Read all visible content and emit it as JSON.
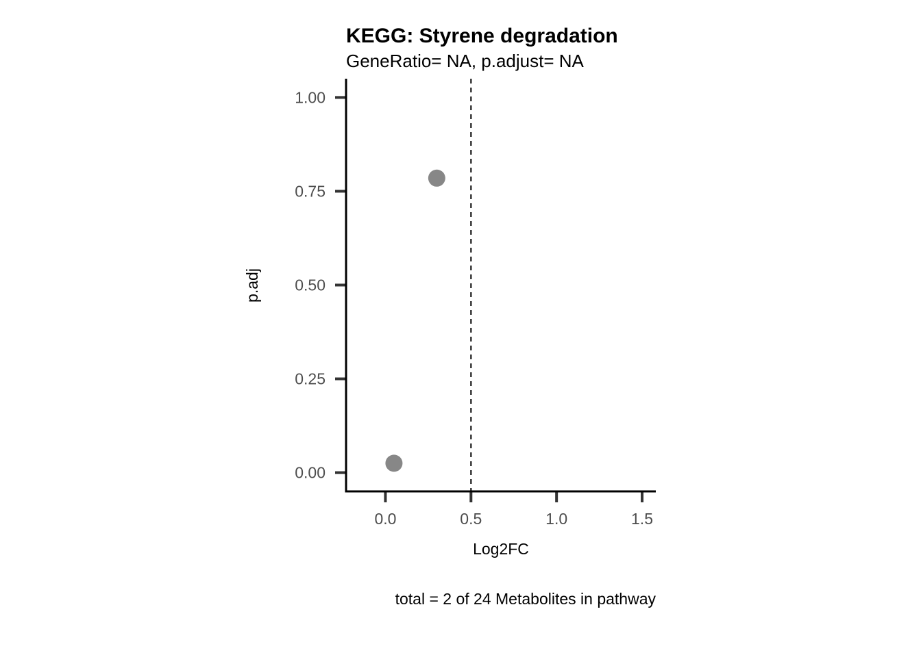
{
  "chart_data": {
    "type": "scatter",
    "title": "KEGG: Styrene degradation",
    "subtitle": "GeneRatio= NA, p.adjust= NA",
    "xlabel": "Log2FC",
    "ylabel": "p.adj",
    "caption": "total = 2 of 24 Metabolites in pathway",
    "xlim": [
      -0.23,
      1.58
    ],
    "ylim": [
      -0.05,
      1.05
    ],
    "x_ticks": [
      0.0,
      0.5,
      1.0,
      1.5
    ],
    "x_tick_labels": [
      "0.0",
      "0.5",
      "1.0",
      "1.5"
    ],
    "y_ticks": [
      0.0,
      0.25,
      0.5,
      0.75,
      1.0
    ],
    "y_tick_labels": [
      "0.00",
      "0.25",
      "0.50",
      "0.75",
      "1.00"
    ],
    "reference_line": {
      "axis": "x",
      "value": 0.5,
      "style": "dashed",
      "color": "#000000"
    },
    "points": [
      {
        "x": 0.05,
        "y": 0.025
      },
      {
        "x": 0.3,
        "y": 0.785
      }
    ],
    "point_color": "#878787",
    "grid": false,
    "legend": "none"
  }
}
